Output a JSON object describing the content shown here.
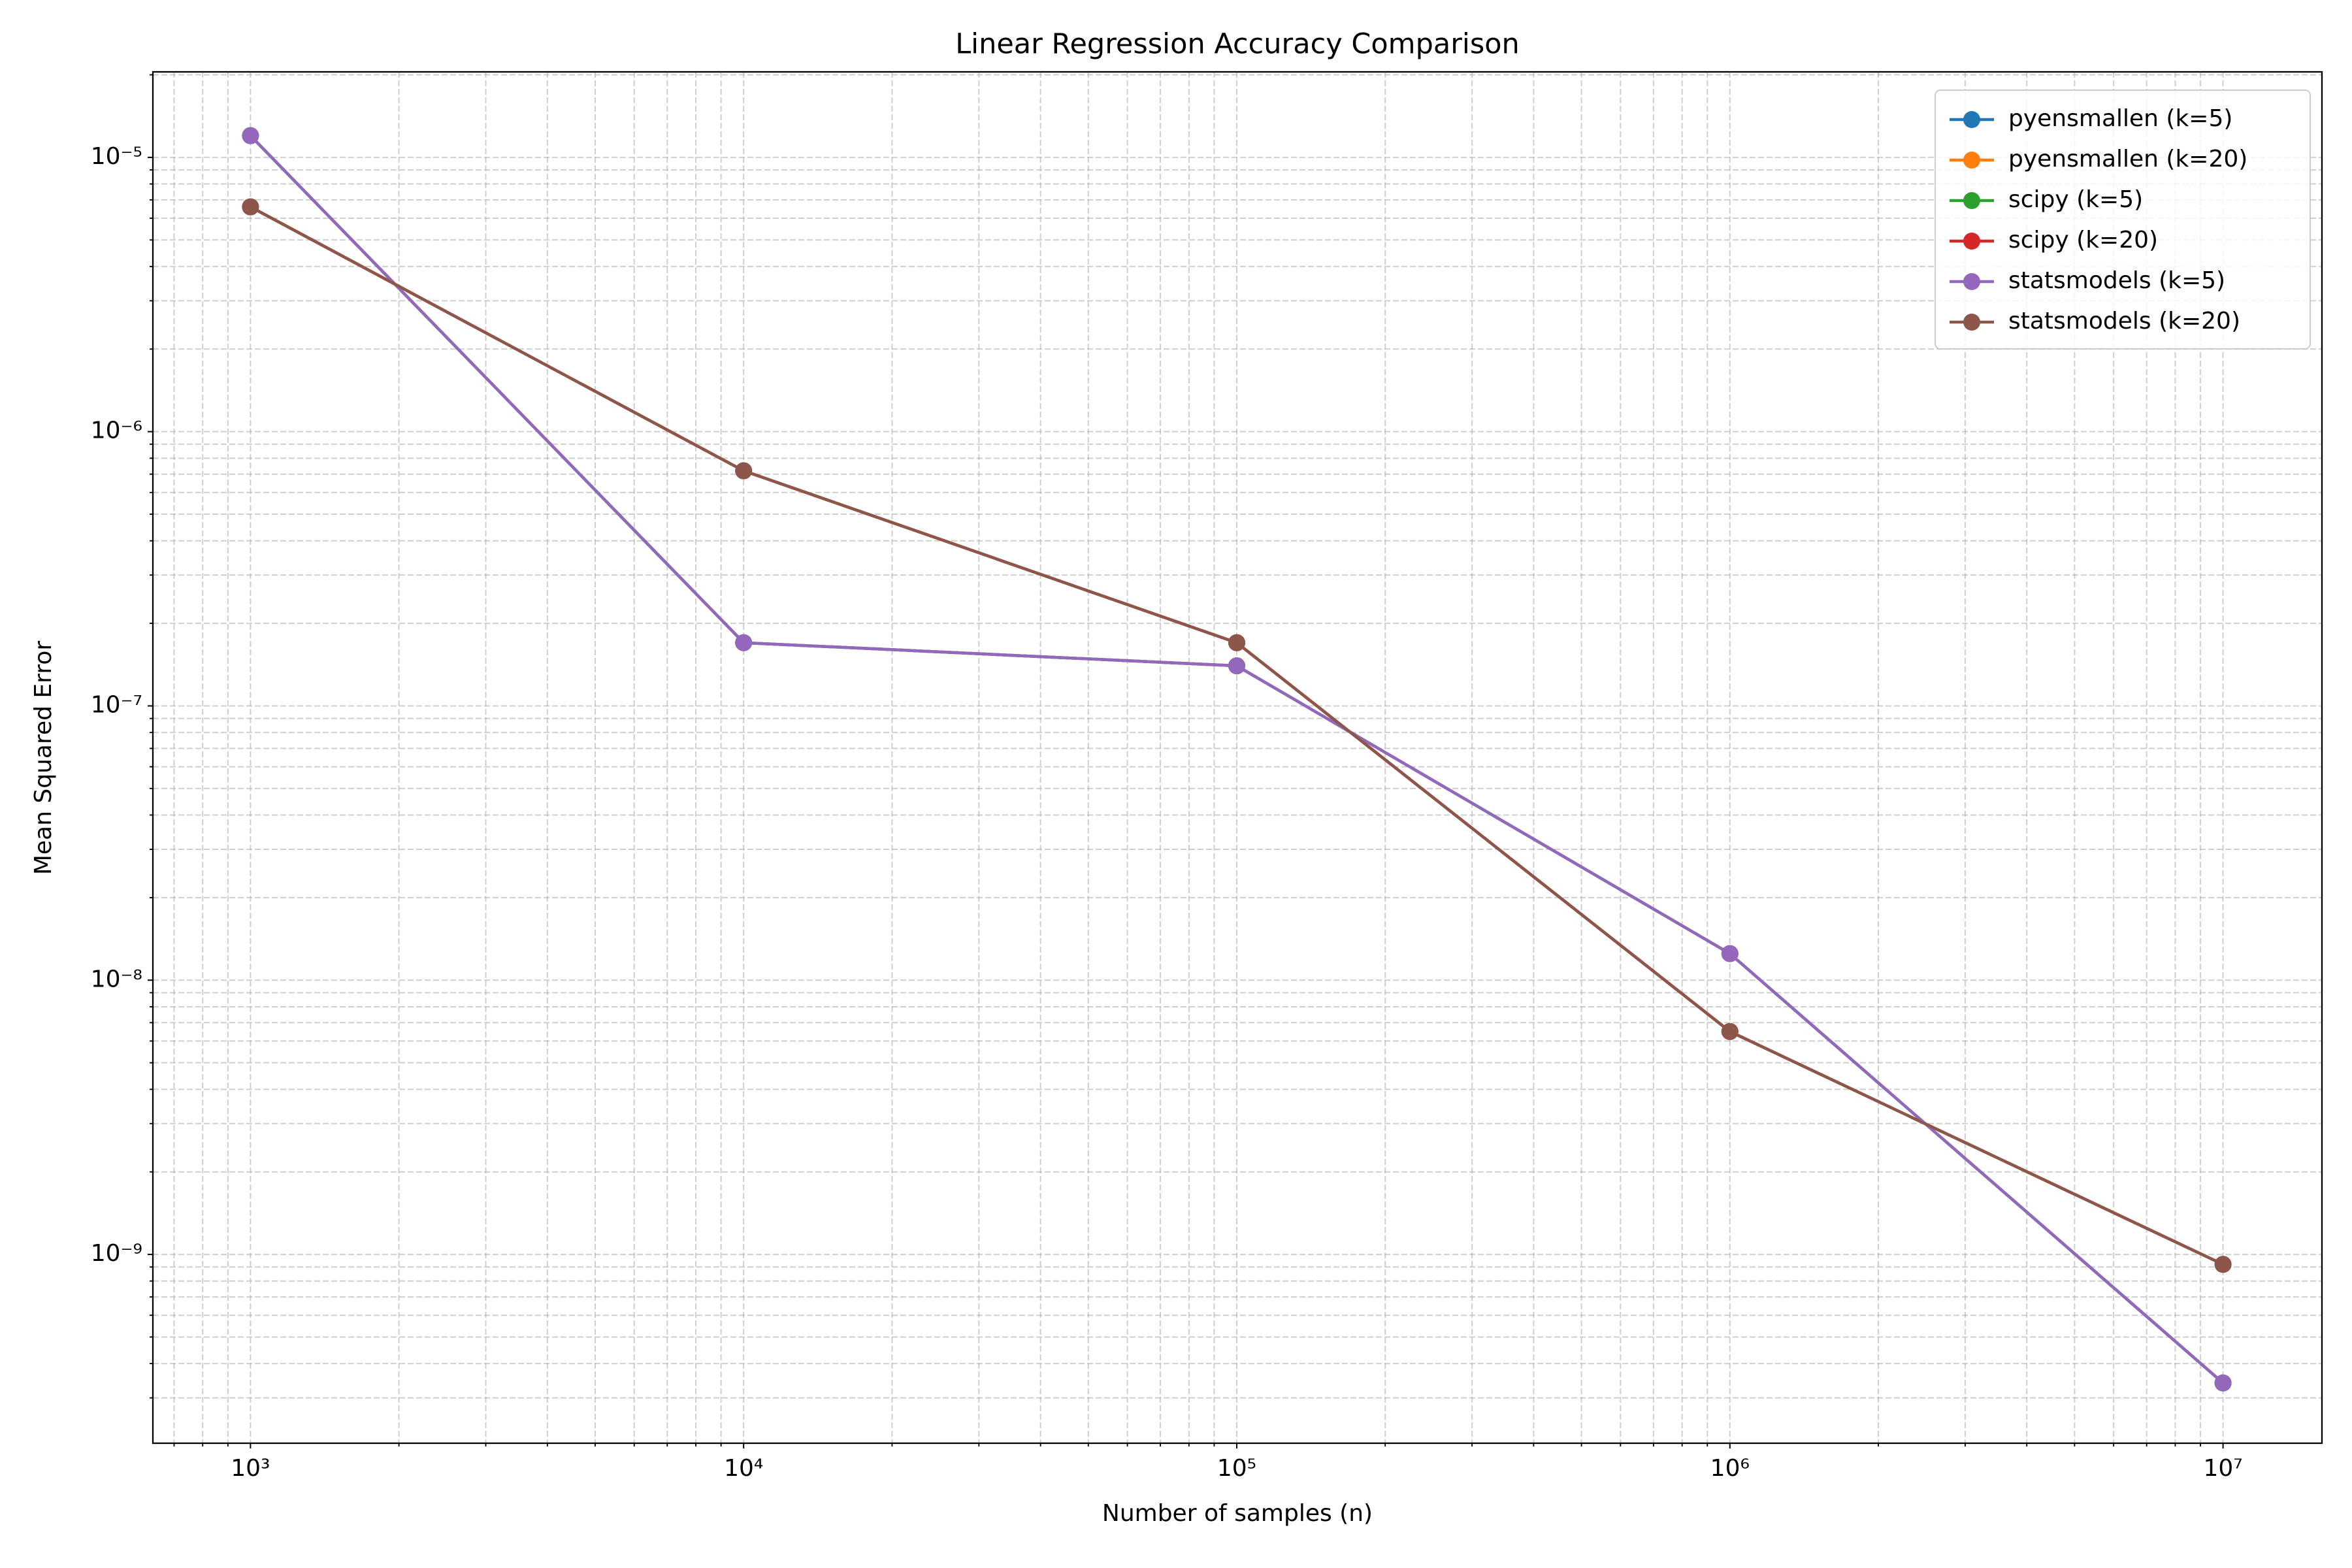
{
  "chart_data": {
    "type": "line",
    "title": "Linear Regression Accuracy Comparison",
    "xlabel": "Number of samples (n)",
    "ylabel": "Mean Squared Error",
    "xscale": "log",
    "yscale": "log",
    "grid": true,
    "legend": "upper right",
    "x": [
      1000,
      10000,
      100000,
      1000000,
      10000000
    ],
    "series": [
      {
        "name": "pyensmallen (k=5)",
        "color": "#1f77b4",
        "values": [
          1.2e-05,
          1.7e-07,
          1.4e-07,
          1.25e-08,
          3.4e-10
        ]
      },
      {
        "name": "pyensmallen (k=20)",
        "color": "#ff7f0e",
        "values": [
          6.6e-06,
          7.2e-07,
          1.7e-07,
          6.5e-09,
          9.2e-10
        ]
      },
      {
        "name": "scipy (k=5)",
        "color": "#2ca02c",
        "values": [
          1.2e-05,
          1.7e-07,
          1.4e-07,
          1.25e-08,
          3.4e-10
        ]
      },
      {
        "name": "scipy (k=20)",
        "color": "#d62728",
        "values": [
          6.6e-06,
          7.2e-07,
          1.7e-07,
          6.5e-09,
          9.2e-10
        ]
      },
      {
        "name": "statsmodels (k=5)",
        "color": "#9467bd",
        "values": [
          1.2e-05,
          1.7e-07,
          1.4e-07,
          1.25e-08,
          3.4e-10
        ]
      },
      {
        "name": "statsmodels (k=20)",
        "color": "#8c564b",
        "values": [
          6.6e-06,
          7.2e-07,
          1.7e-07,
          6.5e-09,
          9.2e-10
        ]
      }
    ],
    "xlim": [
      634,
      15870000
    ],
    "ylim": [
      2.05e-10,
      2.05e-05
    ],
    "xticks": [
      {
        "value": 1000,
        "label": "10³"
      },
      {
        "value": 10000,
        "label": "10⁴"
      },
      {
        "value": 100000,
        "label": "10⁵"
      },
      {
        "value": 1000000,
        "label": "10⁶"
      },
      {
        "value": 10000000,
        "label": "10⁷"
      }
    ],
    "yticks": [
      {
        "value": 1e-09,
        "label": "10⁻⁹"
      },
      {
        "value": 1e-08,
        "label": "10⁻⁸"
      },
      {
        "value": 1e-07,
        "label": "10⁻⁷"
      },
      {
        "value": 1e-06,
        "label": "10⁻⁶"
      },
      {
        "value": 1e-05,
        "label": "10⁻⁵"
      }
    ],
    "minor_xticks": [
      700,
      800,
      900,
      2000,
      3000,
      4000,
      5000,
      6000,
      7000,
      8000,
      9000,
      20000,
      30000,
      40000,
      50000,
      60000,
      70000,
      80000,
      90000,
      200000,
      300000,
      400000,
      500000,
      600000,
      700000,
      800000,
      900000,
      2000000,
      3000000,
      4000000,
      5000000,
      6000000,
      7000000,
      8000000,
      9000000
    ],
    "minor_yticks": [
      3e-10,
      4e-10,
      5e-10,
      6e-10,
      7e-10,
      8e-10,
      9e-10,
      2e-09,
      3e-09,
      4e-09,
      5e-09,
      6e-09,
      7e-09,
      8e-09,
      9e-09,
      2e-08,
      3e-08,
      4e-08,
      5e-08,
      6e-08,
      7e-08,
      8e-08,
      9e-08,
      2e-07,
      3e-07,
      4e-07,
      5e-07,
      6e-07,
      7e-07,
      8e-07,
      9e-07,
      2e-06,
      3e-06,
      4e-06,
      5e-06,
      6e-06,
      7e-06,
      8e-06,
      9e-06,
      2e-05
    ]
  }
}
